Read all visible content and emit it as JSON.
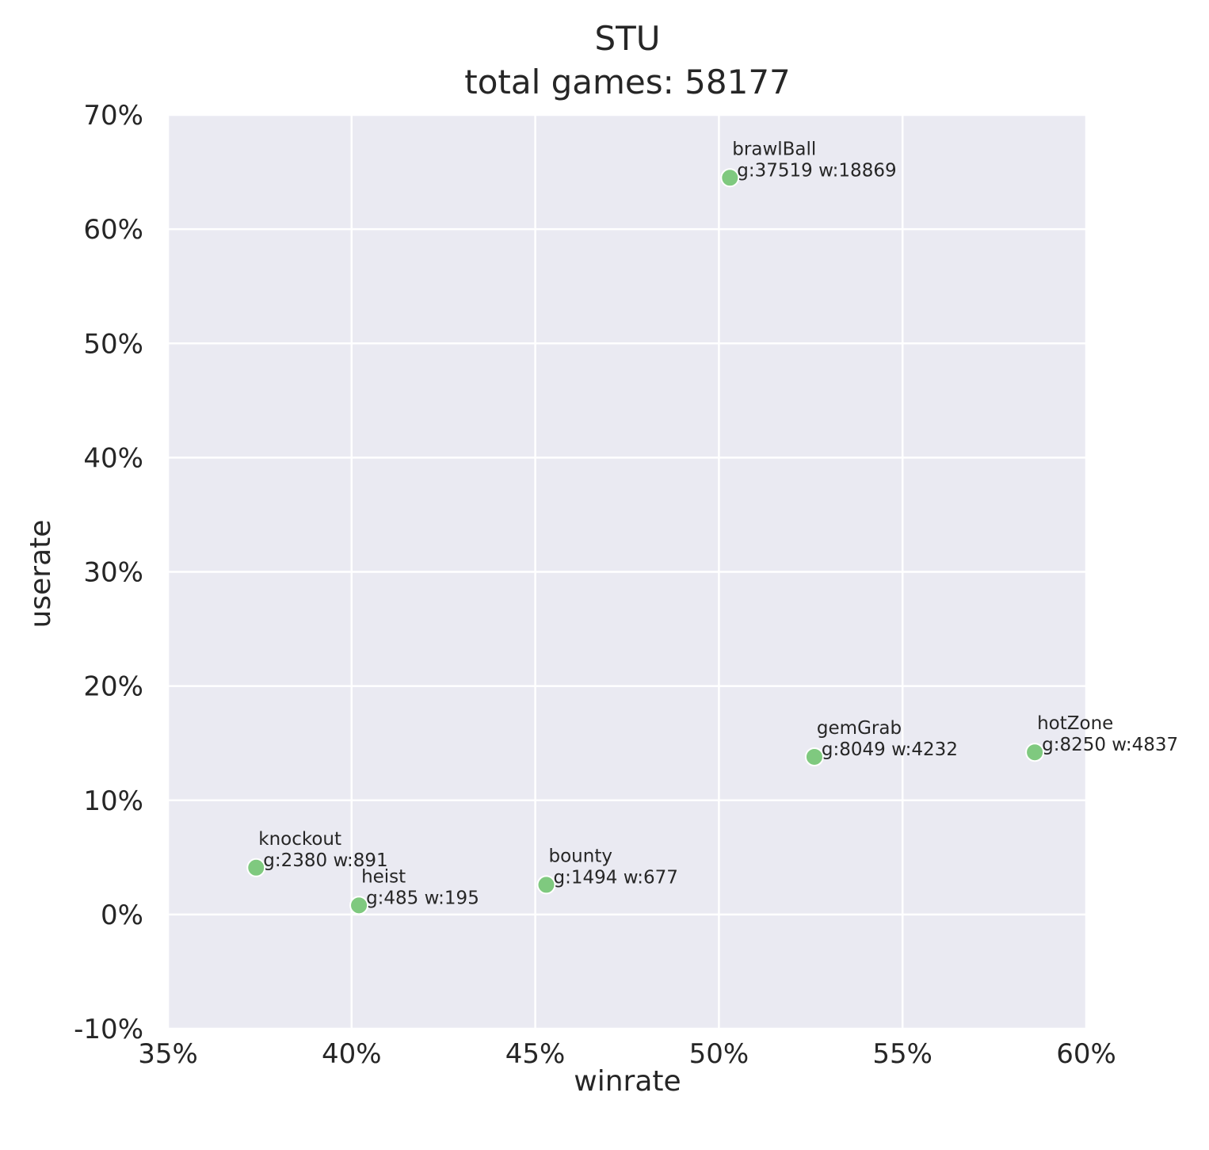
{
  "chart_data": {
    "type": "scatter",
    "title": "STU",
    "subtitle": "total games: 58177",
    "xlabel": "winrate",
    "ylabel": "userate",
    "xlim": [
      0.35,
      0.6
    ],
    "ylim": [
      -0.1,
      0.7
    ],
    "xticks": [
      0.35,
      0.4,
      0.45,
      0.5,
      0.55,
      0.6
    ],
    "xtick_labels": [
      "35%",
      "40%",
      "45%",
      "50%",
      "55%",
      "60%"
    ],
    "yticks": [
      -0.1,
      0.0,
      0.1,
      0.2,
      0.3,
      0.4,
      0.5,
      0.6,
      0.7
    ],
    "ytick_labels": [
      "-10%",
      "0%",
      "10%",
      "20%",
      "30%",
      "40%",
      "50%",
      "60%",
      "70%"
    ],
    "grid": true,
    "colors": {
      "background": "#eaeaf2",
      "grid": "#ffffff",
      "point": "#7fc97f"
    },
    "points": [
      {
        "name": "brawlBall",
        "stats": "g:37519 w:18869",
        "x": 0.503,
        "y": 0.645
      },
      {
        "name": "gemGrab",
        "stats": "g:8049 w:4232",
        "x": 0.526,
        "y": 0.138
      },
      {
        "name": "hotZone",
        "stats": "g:8250 w:4837",
        "x": 0.586,
        "y": 0.142
      },
      {
        "name": "knockout",
        "stats": "g:2380 w:891",
        "x": 0.374,
        "y": 0.041
      },
      {
        "name": "heist",
        "stats": "g:485 w:195",
        "x": 0.402,
        "y": 0.008
      },
      {
        "name": "bounty",
        "stats": "g:1494 w:677",
        "x": 0.453,
        "y": 0.026
      }
    ]
  }
}
